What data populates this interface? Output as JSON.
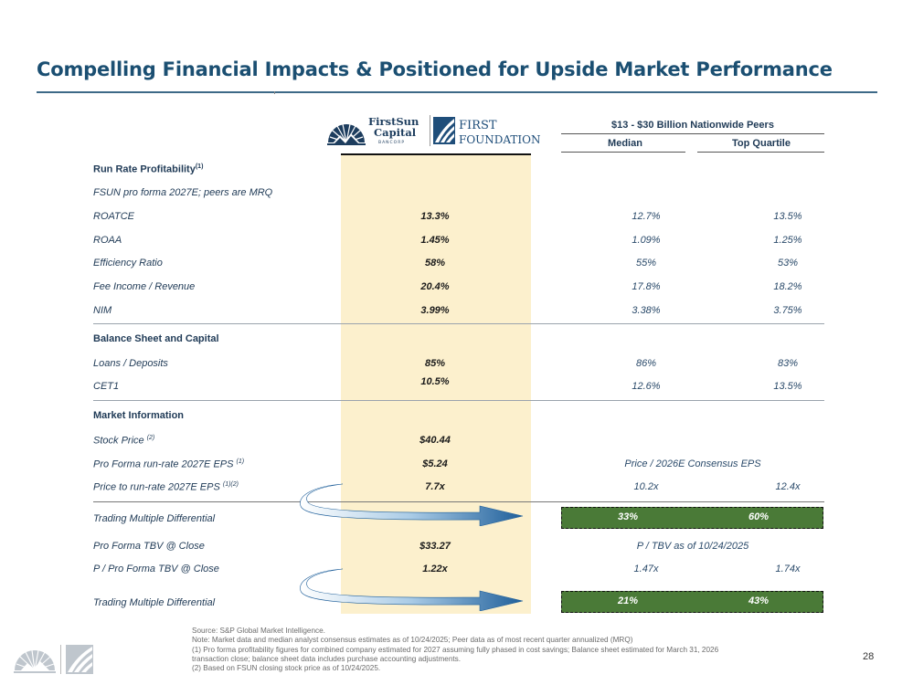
{
  "title": "Compelling Financial Impacts & Positioned for Upside Market Performance",
  "logos": {
    "firstsun": {
      "line1": "FirstSun",
      "line2": "Capital",
      "line3": "BANCORP"
    },
    "firstfoundation": {
      "line1": "FIRST",
      "line2": "FOUNDATION"
    }
  },
  "peers": {
    "header": "$13 - $30 Billion Nationwide Peers",
    "median_label": "Median",
    "top_quartile_label": "Top Quartile"
  },
  "sections": {
    "run_rate": {
      "label": "Run Rate Profitability",
      "note": "(1)"
    },
    "run_rate_sub": "FSUN pro forma 2027E; peers are MRQ",
    "balance": "Balance Sheet and Capital",
    "market": "Market Information"
  },
  "rows": {
    "roatce": {
      "label": "ROATCE",
      "pf": "13.3%",
      "median": "12.7%",
      "top": "13.5%"
    },
    "roaa": {
      "label": "ROAA",
      "pf": "1.45%",
      "median": "1.09%",
      "top": "1.25%"
    },
    "efficiency": {
      "label": "Efficiency Ratio",
      "pf": "58%",
      "median": "55%",
      "top": "53%"
    },
    "fee": {
      "label": "Fee Income / Revenue",
      "pf": "20.4%",
      "median": "17.8%",
      "top": "18.2%"
    },
    "nim": {
      "label": "NIM",
      "pf": "3.99%",
      "median": "3.38%",
      "top": "3.75%"
    },
    "loans": {
      "label": "Loans / Deposits",
      "pf": "85%",
      "median": "86%",
      "top": "83%"
    },
    "cet1": {
      "label": "CET1",
      "pf": "10.5%",
      "median": "12.6%",
      "top": "13.5%"
    },
    "stock_price": {
      "label": "Stock Price",
      "note": "(2)",
      "pf": "$40.44"
    },
    "pf_eps": {
      "label": "Pro Forma run-rate 2027E EPS",
      "note": "(1)",
      "pf": "$5.24",
      "peer_label": "Price / 2026E Consensus EPS"
    },
    "price_eps": {
      "label": "Price to run-rate 2027E EPS",
      "note": "(1)(2)",
      "pf": "7.7x",
      "median": "10.2x",
      "top": "12.4x"
    },
    "diff1": {
      "label": "Trading Multiple Differential",
      "median": "33%",
      "top": "60%"
    },
    "pf_tbv": {
      "label": "Pro Forma TBV @ Close",
      "pf": "$33.27",
      "peer_label": "P / TBV as of 10/24/2025"
    },
    "p_tbv": {
      "label": "P / Pro Forma TBV @ Close",
      "pf": "1.22x",
      "median": "1.47x",
      "top": "1.74x"
    },
    "diff2": {
      "label": "Trading Multiple Differential",
      "median": "21%",
      "top": "43%"
    }
  },
  "footnotes": [
    "Source: S&P Global Market Intelligence.",
    "Note: Market data and median analyst consensus estimates as of 10/24/2025; Peer data as of most recent quarter annualized (MRQ)",
    "(1) Pro forma profitability figures for combined company estimated for 2027 assuming fully phased in cost savings; Balance sheet estimated for March 31, 2026",
    "transaction close; balance sheet data includes purchase accounting adjustments.",
    "(2) Based on FSUN closing stock price as of 10/24/2025."
  ],
  "page_number": "28",
  "colors": {
    "title": "#1b4f72",
    "highlight": "#fcf0cd",
    "green": "#4a7a37"
  }
}
